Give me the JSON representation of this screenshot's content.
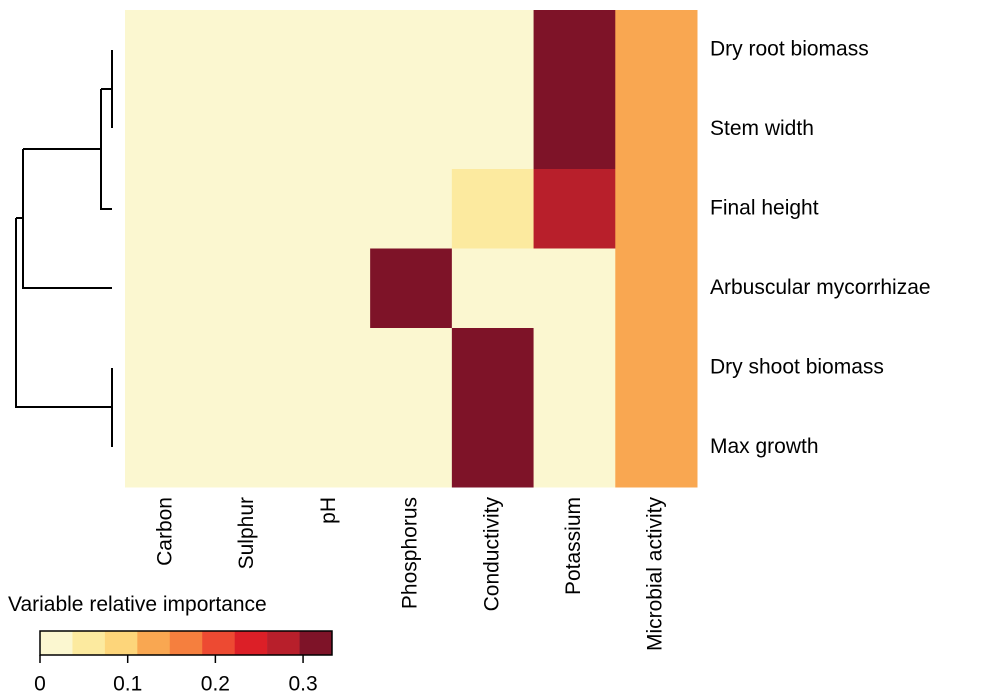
{
  "chart_data": {
    "type": "heatmap",
    "rows": [
      "Dry root biomass",
      "Stem width",
      "Final height",
      "Arbuscular mycorrhizae",
      "Dry shoot biomass",
      "Max growth"
    ],
    "columns": [
      "Carbon",
      "Sulphur",
      "pH",
      "Phosphorus",
      "Conductivity",
      "Potassium",
      "Microbial activity"
    ],
    "values": [
      [
        0.01,
        0.01,
        0.01,
        0.01,
        0.01,
        0.32,
        0.13
      ],
      [
        0.01,
        0.01,
        0.01,
        0.01,
        0.01,
        0.32,
        0.13
      ],
      [
        0.01,
        0.01,
        0.01,
        0.01,
        0.05,
        0.27,
        0.13
      ],
      [
        0.01,
        0.01,
        0.01,
        0.32,
        0.01,
        0.01,
        0.13
      ],
      [
        0.01,
        0.01,
        0.01,
        0.01,
        0.32,
        0.01,
        0.13
      ],
      [
        0.01,
        0.01,
        0.01,
        0.01,
        0.32,
        0.01,
        0.13
      ]
    ],
    "colorbar_label": "Variable relative importance",
    "zlim": [
      0,
      0.333
    ],
    "zticks": [
      0,
      0.1,
      0.2,
      0.3
    ],
    "colors": [
      "#fbf7d0",
      "#fcea9f",
      "#fdd57a",
      "#f9a751",
      "#f57f3e",
      "#ed4a32",
      "#dc1f27",
      "#b81f2b",
      "#7e1328"
    ]
  }
}
